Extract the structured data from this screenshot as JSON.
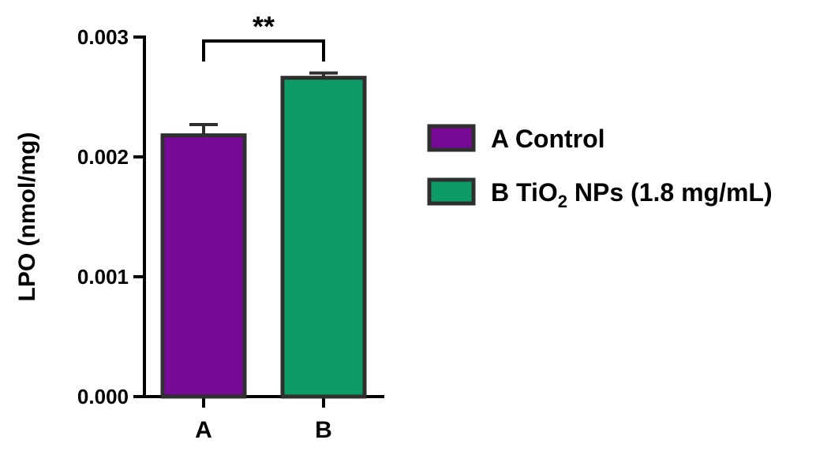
{
  "chart_data": {
    "type": "bar",
    "title": "",
    "xlabel": "",
    "ylabel": "LPO (nmol/mg)",
    "ylim": [
      0,
      0.003
    ],
    "yticks": [
      "0.000",
      "0.001",
      "0.002",
      "0.003"
    ],
    "categories": [
      "A",
      "B"
    ],
    "values": [
      0.00218,
      0.00266
    ],
    "error": [
      9e-05,
      4e-05
    ],
    "colors": [
      "#760a97",
      "#0c9b65"
    ],
    "edge_color": "#2f2f2f",
    "legend": {
      "placement": "right",
      "entries": [
        {
          "key": "A",
          "label": "A Control",
          "color": "#760a97"
        },
        {
          "key": "B",
          "label_main": "B TiO",
          "label_sub": "2",
          "label_tail": " NPs (1.8 mg/mL)",
          "color": "#0c9b65"
        }
      ]
    },
    "significance": {
      "between": [
        "A",
        "B"
      ],
      "label": "**"
    },
    "grid": false
  }
}
